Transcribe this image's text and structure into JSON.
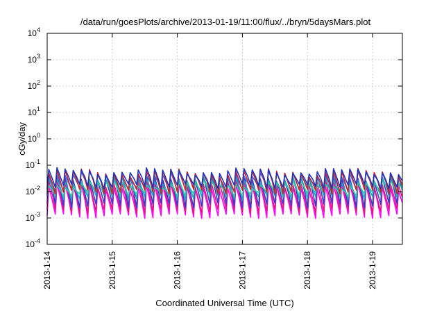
{
  "chart_data": {
    "type": "line",
    "title": "/data/run/goesPlots/archive/2013-01-19/11:00/flux/../bryn/5daysMars.plot",
    "xlabel": "Coordinated Universal Time (UTC)",
    "ylabel": "cGy/day",
    "yscale": "log",
    "ylim": [
      0.0001,
      10000
    ],
    "xlim": [
      "2013-01-14",
      "2013-01-19T11:00"
    ],
    "y_ticks": [
      {
        "base": "10",
        "exp": "-4"
      },
      {
        "base": "10",
        "exp": "-3"
      },
      {
        "base": "10",
        "exp": "-2"
      },
      {
        "base": "10",
        "exp": "-1"
      },
      {
        "base": "10",
        "exp": "0"
      },
      {
        "base": "10",
        "exp": "1"
      },
      {
        "base": "10",
        "exp": "2"
      },
      {
        "base": "10",
        "exp": "3"
      },
      {
        "base": "10",
        "exp": "4"
      }
    ],
    "x_ticks": [
      "2013-1-14",
      "2013-1-15",
      "2013-1-16",
      "2013-1-17",
      "2013-1-18",
      "2013-1-19"
    ],
    "grid": true,
    "period_hours": 3,
    "series": [
      {
        "color": "#ff00ff",
        "peak": 0.016,
        "trough": 0.0012
      },
      {
        "color": "#e0197d",
        "peak": 0.022,
        "trough": 0.0018
      },
      {
        "color": "#2f3fd0",
        "peak": 0.035,
        "trough": 0.003
      },
      {
        "color": "#1aa6c8",
        "peak": 0.03,
        "trough": 0.006
      },
      {
        "color": "#2ec9a5",
        "peak": 0.02,
        "trough": 0.008
      },
      {
        "color": "#3b6fe0",
        "peak": 0.045,
        "trough": 0.012
      },
      {
        "color": "#d0202a",
        "peak": 0.055,
        "trough": 0.01
      },
      {
        "color": "#2233bb",
        "peak": 0.06,
        "trough": 0.016
      }
    ]
  }
}
